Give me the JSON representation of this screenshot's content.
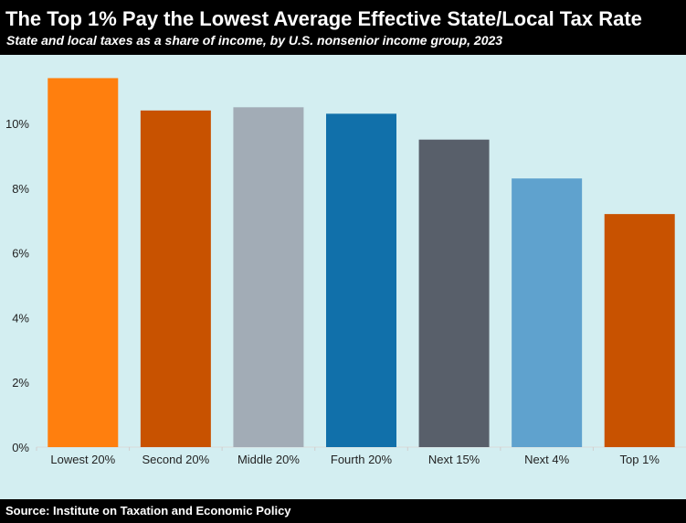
{
  "header": {
    "title": "The Top 1% Pay the Lowest Average Effective State/Local Tax Rate",
    "subtitle": "State and local taxes as a share of income, by U.S. nonsenior income group, 2023"
  },
  "footer": {
    "source": "Source: Institute on Taxation and Economic Policy"
  },
  "chart_data": {
    "type": "bar",
    "title": "The Top 1% Pay the Lowest Average Effective State/Local Tax Rate",
    "subtitle": "State and local taxes as a share of income, by U.S. nonsenior income group, 2023",
    "xlabel": "",
    "ylabel": "",
    "categories": [
      "Lowest 20%",
      "Second 20%",
      "Middle 20%",
      "Fourth 20%",
      "Next 15%",
      "Next 4%",
      "Top 1%"
    ],
    "values": [
      11.4,
      10.4,
      10.5,
      10.3,
      9.5,
      8.3,
      7.2
    ],
    "colors": [
      "#ff7f0e",
      "#c85200",
      "#a2acb6",
      "#1170aa",
      "#585f6a",
      "#5fa2ce",
      "#c85200"
    ],
    "ylim": [
      0,
      12
    ],
    "yticks": [
      0,
      2,
      4,
      6,
      8,
      10
    ],
    "ytick_labels": [
      "0%",
      "2%",
      "4%",
      "6%",
      "8%",
      "10%"
    ],
    "grid": false,
    "background": "#d3eef1"
  }
}
